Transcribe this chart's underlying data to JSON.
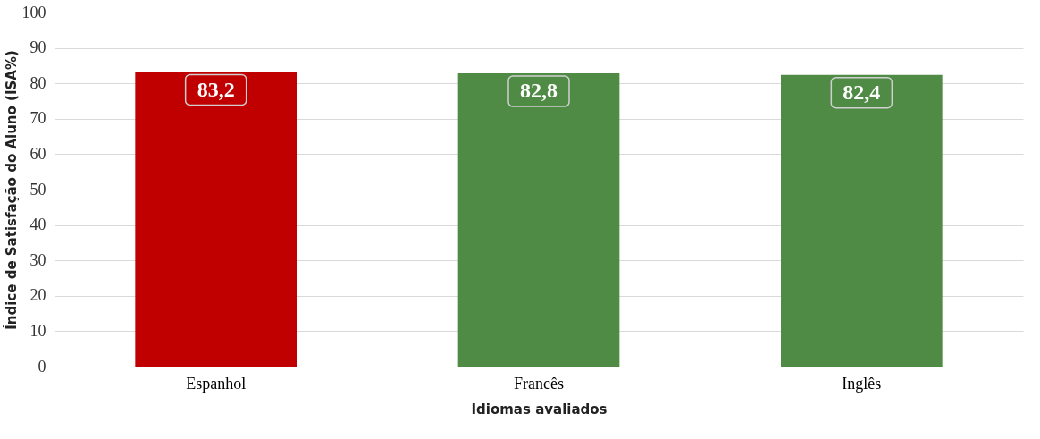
{
  "chart_data": {
    "type": "bar",
    "categories": [
      "Espanhol",
      "Francês",
      "Inglês"
    ],
    "values": [
      83.2,
      82.8,
      82.4
    ],
    "value_labels": [
      "83,2",
      "82,8",
      "82,4"
    ],
    "colors": [
      "#c00000",
      "#4f8b45",
      "#4f8b45"
    ],
    "xlabel": "Idiomas avaliados",
    "ylabel": "Índice de Satisfação do Aluno (ISA%)",
    "ylim": [
      0,
      100
    ],
    "yticks": [
      0,
      10,
      20,
      30,
      40,
      50,
      60,
      70,
      80,
      90,
      100
    ],
    "grid": "y",
    "legend": false
  }
}
